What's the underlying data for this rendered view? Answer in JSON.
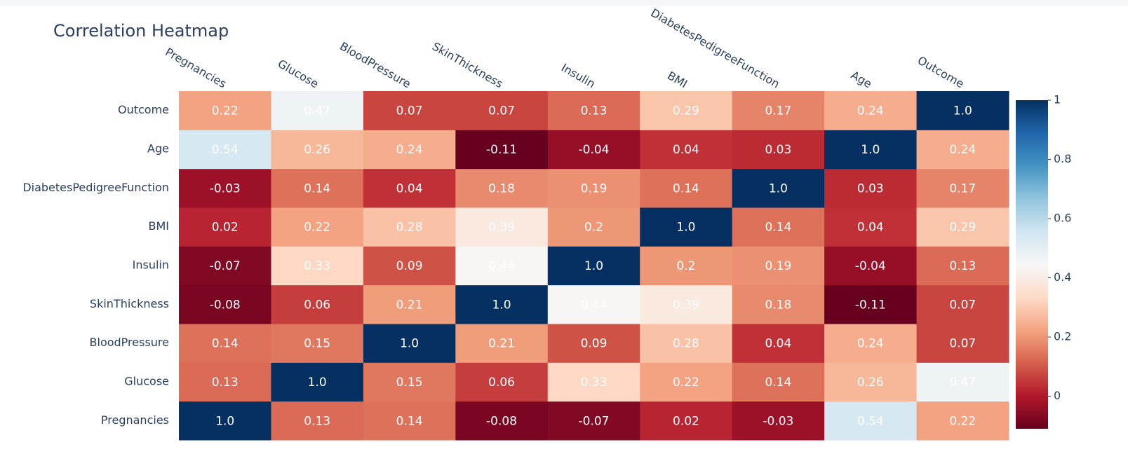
{
  "chart_data": {
    "type": "heatmap",
    "title": "Correlation Heatmap",
    "x": [
      "Pregnancies",
      "Glucose",
      "BloodPressure",
      "SkinThickness",
      "Insulin",
      "BMI",
      "DiabetesPedigreeFunction",
      "Age",
      "Outcome"
    ],
    "y": [
      "Pregnancies",
      "Glucose",
      "BloodPressure",
      "SkinThickness",
      "Insulin",
      "BMI",
      "DiabetesPedigreeFunction",
      "Age",
      "Outcome"
    ],
    "values": [
      [
        1,
        0.13,
        0.14,
        -0.08,
        -0.07,
        0.02,
        -0.03,
        0.54,
        0.22
      ],
      [
        0.13,
        1,
        0.15,
        0.06,
        0.33,
        0.22,
        0.14,
        0.26,
        0.47
      ],
      [
        0.14,
        0.15,
        1,
        0.21,
        0.09,
        0.28,
        0.04,
        0.24,
        0.07
      ],
      [
        -0.08,
        0.06,
        0.21,
        1,
        0.44,
        0.39,
        0.18,
        -0.11,
        0.07
      ],
      [
        -0.07,
        0.33,
        0.09,
        0.44,
        1,
        0.2,
        0.19,
        -0.04,
        0.13
      ],
      [
        0.02,
        0.22,
        0.28,
        0.39,
        0.2,
        1,
        0.14,
        0.04,
        0.29
      ],
      [
        -0.03,
        0.14,
        0.04,
        0.18,
        0.19,
        0.14,
        1,
        0.03,
        0.17
      ],
      [
        0.54,
        0.26,
        0.24,
        -0.11,
        -0.04,
        0.04,
        0.03,
        1,
        0.24
      ],
      [
        0.22,
        0.47,
        0.07,
        0.07,
        0.13,
        0.29,
        0.17,
        0.24,
        1
      ]
    ],
    "value_labels": [
      [
        "1.0",
        "0.13",
        "0.14",
        "-0.08",
        "-0.07",
        "0.02",
        "-0.03",
        "0.54",
        "0.22"
      ],
      [
        "0.13",
        "1.0",
        "0.15",
        "0.06",
        "0.33",
        "0.22",
        "0.14",
        "0.26",
        "0.47"
      ],
      [
        "0.14",
        "0.15",
        "1.0",
        "0.21",
        "0.09",
        "0.28",
        "0.04",
        "0.24",
        "0.07"
      ],
      [
        "-0.08",
        "0.06",
        "0.21",
        "1.0",
        "0.44",
        "0.39",
        "0.18",
        "-0.11",
        "0.07"
      ],
      [
        "-0.07",
        "0.33",
        "0.09",
        "0.44",
        "1.0",
        "0.2",
        "0.19",
        "-0.04",
        "0.13"
      ],
      [
        "0.02",
        "0.22",
        "0.28",
        "0.39",
        "0.2",
        "1.0",
        "0.14",
        "0.04",
        "0.29"
      ],
      [
        "-0.03",
        "0.14",
        "0.04",
        "0.18",
        "0.19",
        "0.14",
        "1.0",
        "0.03",
        "0.17"
      ],
      [
        "0.54",
        "0.26",
        "0.24",
        "-0.11",
        "-0.04",
        "0.04",
        "0.03",
        "1.0",
        "0.24"
      ],
      [
        "0.22",
        "0.47",
        "0.07",
        "0.07",
        "0.13",
        "0.29",
        "0.17",
        "0.24",
        "1.0"
      ]
    ],
    "colorscale": [
      "#67001f",
      "#b2182b",
      "#d6604d",
      "#f4a582",
      "#fddbc7",
      "#f7f7f7",
      "#d1e5f0",
      "#92c5de",
      "#4393c3",
      "#2166ac",
      "#053061"
    ],
    "zlim": [
      -0.11,
      1
    ],
    "zticks": [
      0,
      0.2,
      0.4,
      0.6,
      0.8,
      1
    ]
  }
}
